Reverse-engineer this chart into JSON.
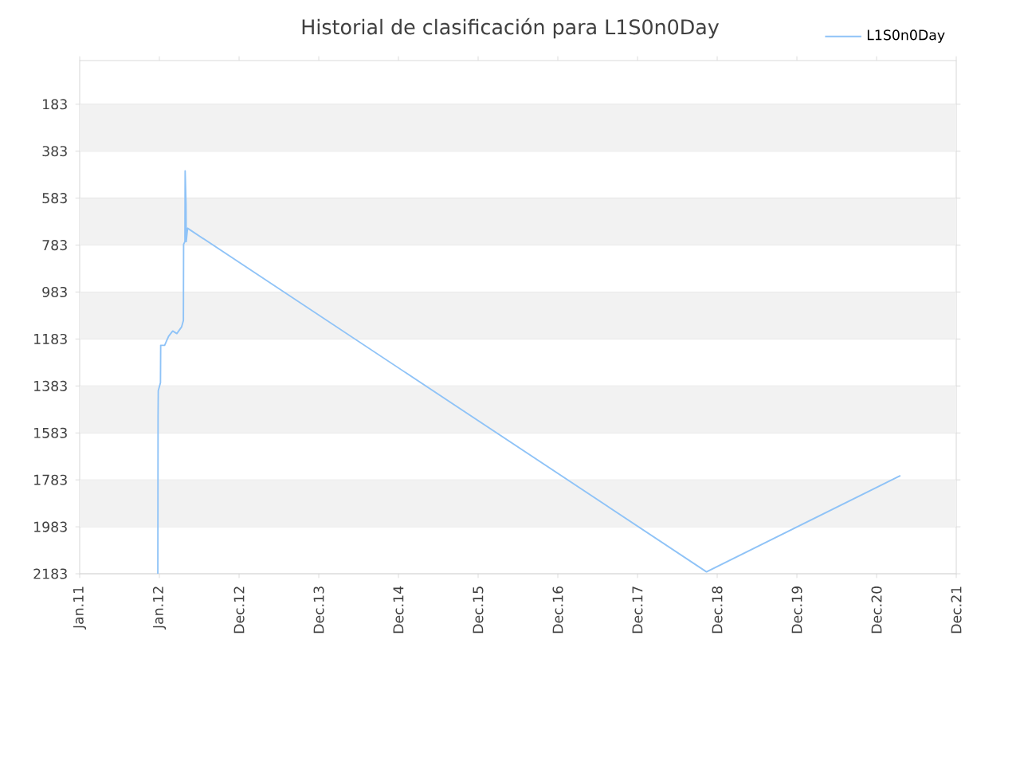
{
  "chart_data": {
    "type": "line",
    "title": "Historial de clasificación para L1S0n0Day",
    "x": [
      "2011-12-25",
      "2011-12-26",
      "2011-12-27",
      "2012-01-06",
      "2012-01-07",
      "2012-01-25",
      "2012-02-12",
      "2012-03-02",
      "2012-03-21",
      "2012-04-12",
      "2012-04-20",
      "2012-04-21",
      "2012-04-27",
      "2012-04-28",
      "2012-05-02",
      "2012-05-03",
      "2012-05-09",
      "2018-11-11",
      "2021-04-17"
    ],
    "series": [
      {
        "name": "L1S0n0Day",
        "color": "#8fc3f7",
        "values": [
          2183,
          1516,
          1403,
          1369,
          1210,
          1210,
          1172,
          1149,
          1160,
          1131,
          1104,
          780,
          768,
          467,
          609,
          768,
          711,
          2175,
          1765
        ]
      }
    ],
    "xlim": [
      "2011-01-01",
      "2021-12-29"
    ],
    "xticks": [
      {
        "value": "2011-01-01",
        "label": "Jan.11"
      },
      {
        "value": "2012-01-01",
        "label": "Jan.12"
      },
      {
        "value": "2012-12-31",
        "label": "Dec.12"
      },
      {
        "value": "2013-12-31",
        "label": "Dec.13"
      },
      {
        "value": "2014-12-31",
        "label": "Dec.14"
      },
      {
        "value": "2015-12-31",
        "label": "Dec.15"
      },
      {
        "value": "2016-12-30",
        "label": "Dec.16"
      },
      {
        "value": "2017-12-30",
        "label": "Dec.17"
      },
      {
        "value": "2018-12-30",
        "label": "Dec.18"
      },
      {
        "value": "2019-12-30",
        "label": "Dec.19"
      },
      {
        "value": "2020-12-29",
        "label": "Dec.20"
      },
      {
        "value": "2021-12-29",
        "label": "Dec.21"
      }
    ],
    "ylim": [
      2183,
      -3
    ],
    "yticks": [
      183,
      383,
      583,
      783,
      983,
      1183,
      1383,
      1583,
      1783,
      1983,
      2183
    ],
    "grid": "y",
    "legend": "top right",
    "marker": "none",
    "line_style": "solid"
  }
}
